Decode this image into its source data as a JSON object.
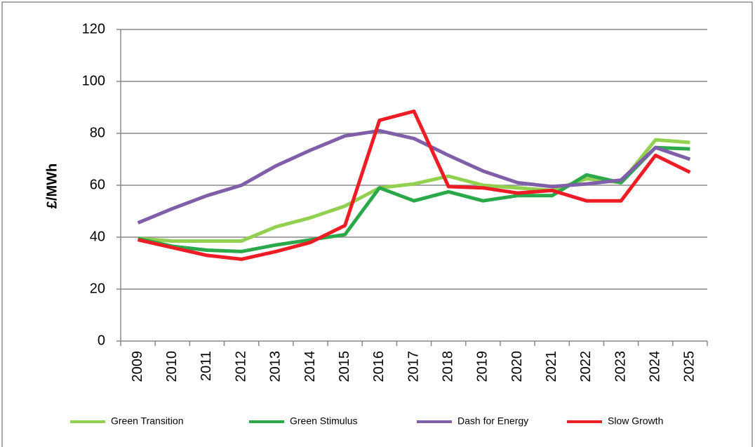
{
  "chart_data": {
    "type": "line",
    "y_label": "£/MWh",
    "categories": [
      "2009",
      "2010",
      "2011",
      "2012",
      "2013",
      "2014",
      "2015",
      "2016",
      "2017",
      "2018",
      "2019",
      "2020",
      "2021",
      "2022",
      "2023",
      "2024",
      "2025"
    ],
    "series": [
      {
        "name": "Green Transition",
        "color": "#92d050",
        "values": [
          39.5,
          38.5,
          38.5,
          38.5,
          44,
          47.5,
          52,
          59,
          60.5,
          63.5,
          60,
          59,
          58,
          62.5,
          61,
          77.5,
          76.5
        ]
      },
      {
        "name": "Green Stimulus",
        "color": "#2aa84a",
        "values": [
          39.5,
          36.5,
          35,
          34.5,
          37,
          39,
          41,
          59,
          54,
          57.5,
          54,
          56,
          56,
          64,
          61,
          74.5,
          74
        ]
      },
      {
        "name": "Dash for Energy",
        "color": "#7f5fa8",
        "values": [
          45.5,
          51,
          56,
          60,
          67.5,
          73.5,
          79,
          81,
          78,
          71.5,
          65.5,
          61,
          59.5,
          60.5,
          62,
          74.5,
          70
        ]
      },
      {
        "name": "Slow Growth",
        "color": "#ee1c25",
        "values": [
          39,
          36,
          33,
          31.5,
          34.5,
          38,
          44.5,
          85,
          88.5,
          59.5,
          59,
          57,
          58,
          54,
          54,
          71.5,
          65
        ]
      }
    ],
    "ylim": [
      0,
      120
    ],
    "yticks": [
      0,
      20,
      40,
      60,
      80,
      100,
      120
    ],
    "grid": true,
    "legend": "bottom"
  }
}
